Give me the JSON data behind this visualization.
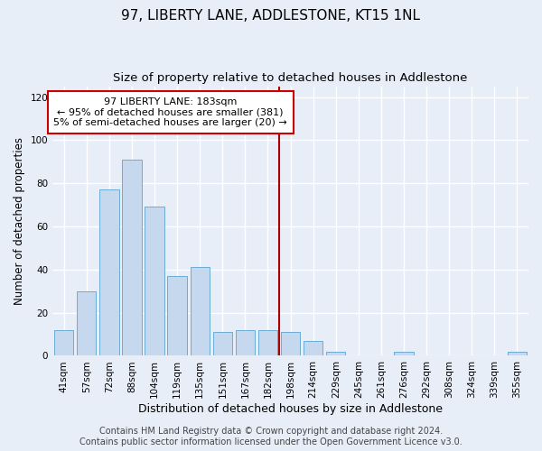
{
  "title": "97, LIBERTY LANE, ADDLESTONE, KT15 1NL",
  "subtitle": "Size of property relative to detached houses in Addlestone",
  "xlabel": "Distribution of detached houses by size in Addlestone",
  "ylabel": "Number of detached properties",
  "categories": [
    "41sqm",
    "57sqm",
    "72sqm",
    "88sqm",
    "104sqm",
    "119sqm",
    "135sqm",
    "151sqm",
    "167sqm",
    "182sqm",
    "198sqm",
    "214sqm",
    "229sqm",
    "245sqm",
    "261sqm",
    "276sqm",
    "292sqm",
    "308sqm",
    "324sqm",
    "339sqm",
    "355sqm"
  ],
  "values": [
    12,
    30,
    77,
    91,
    69,
    37,
    41,
    11,
    12,
    12,
    11,
    7,
    2,
    0,
    0,
    2,
    0,
    0,
    0,
    0,
    2
  ],
  "bar_color": "#c5d8ed",
  "bar_edge_color": "#6aacd6",
  "vline_color": "#aa0000",
  "annotation_text": "97 LIBERTY LANE: 183sqm\n← 95% of detached houses are smaller (381)\n5% of semi-detached houses are larger (20) →",
  "annotation_box_color": "#ffffff",
  "annotation_box_edge": "#cc0000",
  "ylim": [
    0,
    125
  ],
  "yticks": [
    0,
    20,
    40,
    60,
    80,
    100,
    120
  ],
  "background_color": "#e8eef8",
  "grid_color": "#ffffff",
  "footer_line1": "Contains HM Land Registry data © Crown copyright and database right 2024.",
  "footer_line2": "Contains public sector information licensed under the Open Government Licence v3.0.",
  "title_fontsize": 11,
  "subtitle_fontsize": 9.5,
  "xlabel_fontsize": 9,
  "ylabel_fontsize": 8.5,
  "tick_fontsize": 7.5,
  "annotation_fontsize": 8,
  "footer_fontsize": 7
}
